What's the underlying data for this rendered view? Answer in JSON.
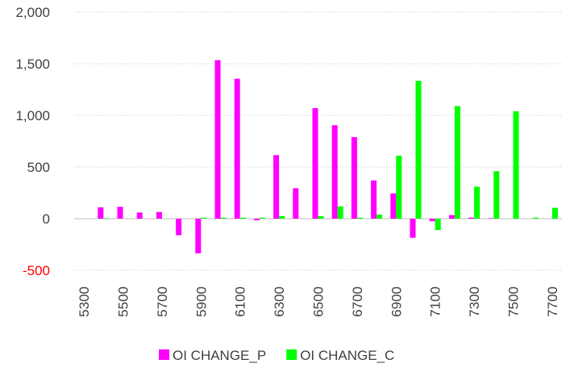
{
  "chart_data": {
    "type": "bar",
    "categories": [
      "5300",
      null,
      "5500",
      null,
      "5700",
      null,
      "5900",
      null,
      "6100",
      null,
      "6300",
      null,
      "6500",
      null,
      "6700",
      null,
      "6900",
      null,
      "7100",
      null,
      "7300",
      null,
      "7500",
      null,
      "7700"
    ],
    "series": [
      {
        "name": "OI CHANGE_P",
        "color": "#ff00ff",
        "values": [
          0,
          110,
          115,
          60,
          65,
          -160,
          -335,
          1535,
          1355,
          -15,
          615,
          295,
          1070,
          905,
          790,
          370,
          245,
          -185,
          -25,
          35,
          10,
          5,
          0,
          0,
          0
        ]
      },
      {
        "name": "OI CHANGE_C",
        "color": "#00ff00",
        "values": [
          0,
          5,
          0,
          0,
          0,
          0,
          10,
          10,
          10,
          10,
          25,
          0,
          25,
          120,
          10,
          40,
          610,
          1335,
          -110,
          1090,
          310,
          460,
          1040,
          10,
          105
        ]
      }
    ],
    "ylim": [
      -500,
      2000
    ],
    "yticks": [
      -500,
      0,
      500,
      {
        "value": 1000,
        "label": "1,000"
      },
      {
        "value": 1500,
        "label": "1,500"
      },
      {
        "value": 2000,
        "label": "2,000"
      }
    ],
    "negative_tick_color": "#ff0000",
    "grid": true,
    "legend": "bottom"
  }
}
